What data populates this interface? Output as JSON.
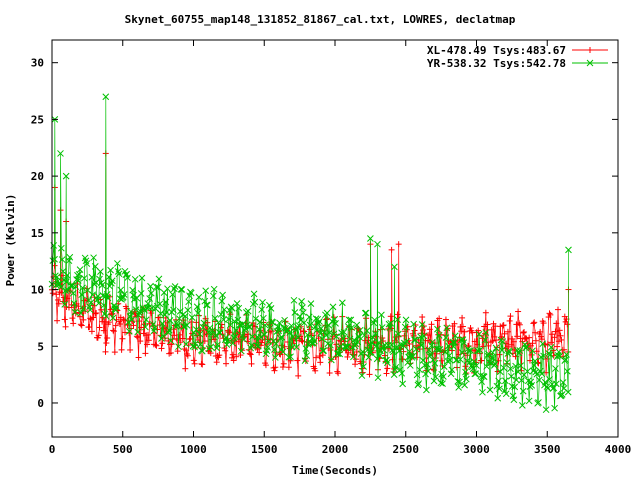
{
  "chart_data": {
    "type": "scatter",
    "title": "Skynet_60755_map148_131852_81867_cal.txt, LOWRES, declatmap",
    "xlabel": "Time(Seconds)",
    "ylabel": "Power (Kelvin)",
    "xlim": [
      0,
      4000
    ],
    "ylim": [
      -3,
      32
    ],
    "xticks": [
      0,
      500,
      1000,
      1500,
      2000,
      2500,
      3000,
      3500,
      4000
    ],
    "yticks": [
      0,
      5,
      10,
      15,
      20,
      25,
      30
    ],
    "grid": false,
    "legend_position": "top-right",
    "series": [
      {
        "name": "XL-478.49 Tsys:483.67",
        "color": "#ff0000",
        "marker": "plus",
        "connected": true,
        "trend": [
          [
            0,
            9.5
          ],
          [
            300,
            7.5
          ],
          [
            600,
            6.5
          ],
          [
            1000,
            5.5
          ],
          [
            1500,
            5.2
          ],
          [
            2000,
            5.0
          ],
          [
            2500,
            5.2
          ],
          [
            3000,
            5.5
          ],
          [
            3500,
            5.5
          ],
          [
            3650,
            5.5
          ]
        ],
        "spread": 2.2,
        "spikes": [
          [
            20,
            19
          ],
          [
            60,
            17
          ],
          [
            100,
            16
          ],
          [
            380,
            22
          ],
          [
            2250,
            14
          ],
          [
            2400,
            13.5
          ],
          [
            2450,
            14
          ],
          [
            3650,
            10
          ]
        ]
      },
      {
        "name": "YR-538.32 Tsys:542.78",
        "color": "#00c000",
        "marker": "cross",
        "connected": true,
        "trend": [
          [
            0,
            11
          ],
          [
            300,
            10
          ],
          [
            600,
            9
          ],
          [
            1000,
            7.5
          ],
          [
            1500,
            6.5
          ],
          [
            2000,
            6.0
          ],
          [
            2500,
            4.5
          ],
          [
            3000,
            3.5
          ],
          [
            3500,
            2.5
          ],
          [
            3650,
            2.0
          ]
        ],
        "spread": 2.4,
        "spikes": [
          [
            20,
            25
          ],
          [
            60,
            22
          ],
          [
            100,
            20
          ],
          [
            380,
            27
          ],
          [
            2250,
            14.5
          ],
          [
            2300,
            14
          ],
          [
            2420,
            12
          ],
          [
            3650,
            13.5
          ]
        ]
      }
    ]
  }
}
